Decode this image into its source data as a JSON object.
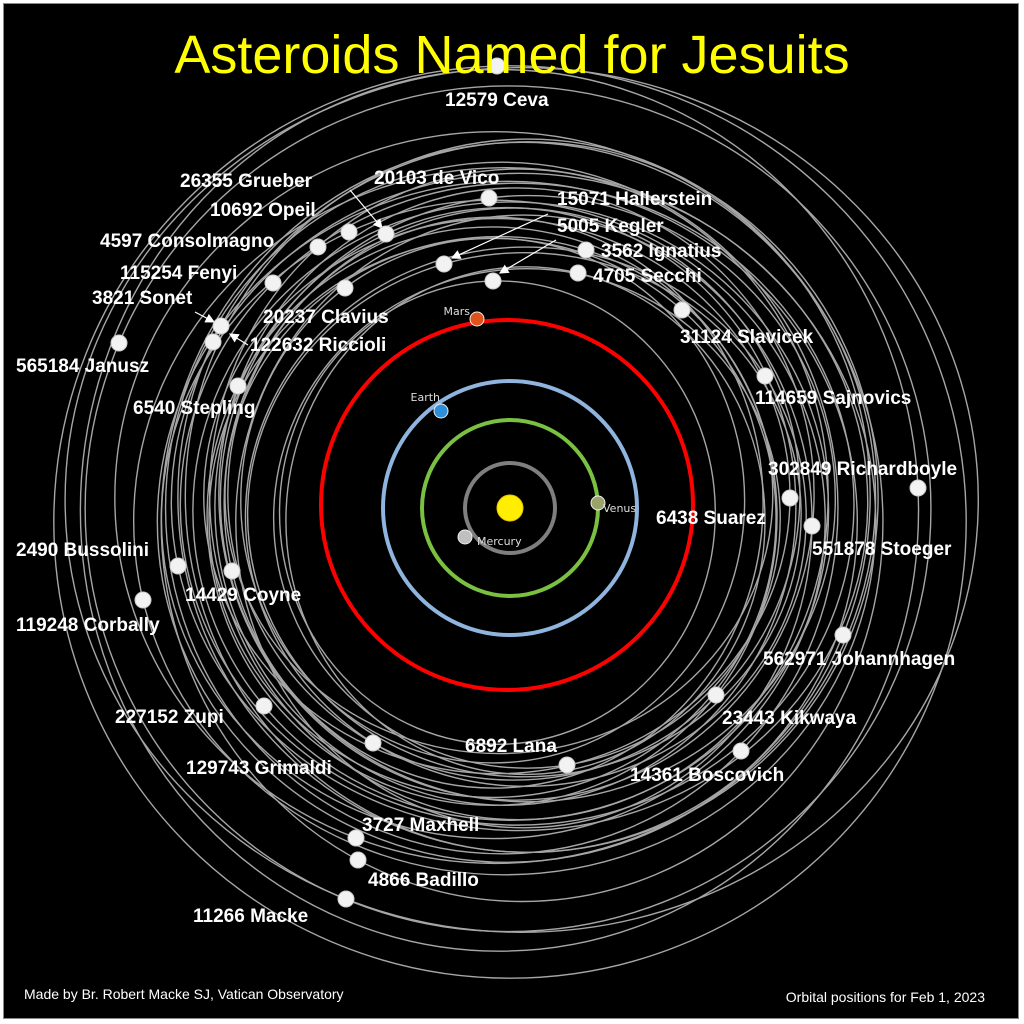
{
  "title": "Asteroids Named for Jesuits",
  "credit": "Made by Br. Robert Macke SJ, Vatican Observatory",
  "date_note": "Orbital positions for Feb 1, 2023",
  "colors": {
    "background": "#000000",
    "title": "#ffff00",
    "sun": "#ffee00",
    "mercury_orbit": "#7f7f7f",
    "venus_orbit": "#7ac142",
    "earth_orbit": "#8fb4de",
    "mars_orbit": "#ff0000",
    "asteroid_orbit": "#a6a6a6",
    "asteroid": "#f2f2f2"
  },
  "planets": [
    {
      "name": "Mercury",
      "color": "#bfbfbf"
    },
    {
      "name": "Venus",
      "color": "#9aa36a"
    },
    {
      "name": "Earth",
      "color": "#2e8fd8"
    },
    {
      "name": "Mars",
      "color": "#e0521c"
    }
  ],
  "asteroids": [
    "12579 Ceva",
    "20103 de Vico",
    "26355 Grueber",
    "10692 Opeil",
    "4597 Consolmagno",
    "15071 Hallerstein",
    "5005 Kegler",
    "3562 Ignatius",
    "4705 Secchi",
    "115254 Fenyi",
    "20237 Clavius",
    "3821 Sonet",
    "122632 Riccioli",
    "565184 Janusz",
    "31124 Slavicek",
    "6540 Stepling",
    "114659 Sajnovics",
    "302849 Richardboyle",
    "6438 Suarez",
    "551878 Stoeger",
    "2490 Bussolini",
    "14429 Coyne",
    "119248 Corbally",
    "562971 Johannhagen",
    "227152 Zupi",
    "23443 Kikwaya",
    "129743 Grimaldi",
    "6892 Lana",
    "14361 Boscovich",
    "3727 Maxhell",
    "4866 Badillo",
    "11266 Macke"
  ]
}
